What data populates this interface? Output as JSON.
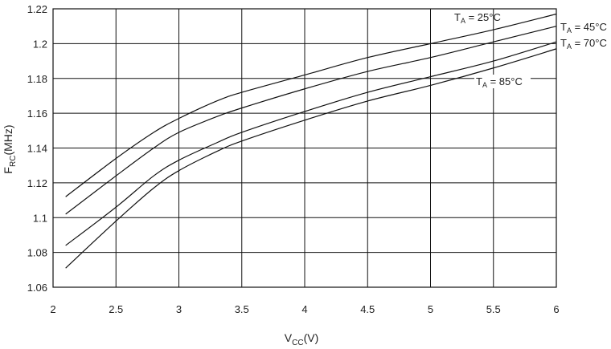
{
  "chart_data": {
    "type": "line",
    "xlabel": {
      "main": "V",
      "sub": "CC",
      "suffix": "(V)"
    },
    "ylabel": {
      "main": "F",
      "sub": "RC",
      "suffix": "(MHz)"
    },
    "xlim": [
      2,
      6
    ],
    "ylim": [
      1.06,
      1.22
    ],
    "grid": true,
    "xticks": [
      {
        "value": 2,
        "label": "2"
      },
      {
        "value": 2.5,
        "label": "2.5"
      },
      {
        "value": 3,
        "label": "3"
      },
      {
        "value": 3.5,
        "label": "3.5"
      },
      {
        "value": 4,
        "label": "4"
      },
      {
        "value": 4.5,
        "label": "4.5"
      },
      {
        "value": 5,
        "label": "5"
      },
      {
        "value": 5.5,
        "label": "5.5"
      },
      {
        "value": 6,
        "label": "6"
      }
    ],
    "yticks": [
      {
        "value": 1.06,
        "label": "1.06"
      },
      {
        "value": 1.08,
        "label": "1.08"
      },
      {
        "value": 1.1,
        "label": "1.1"
      },
      {
        "value": 1.12,
        "label": "1.12"
      },
      {
        "value": 1.14,
        "label": "1.14"
      },
      {
        "value": 1.16,
        "label": "1.16"
      },
      {
        "value": 1.18,
        "label": "1.18"
      },
      {
        "value": 1.2,
        "label": "1.2"
      },
      {
        "value": 1.22,
        "label": "1.22"
      }
    ],
    "series": [
      {
        "name": "T_A = 25°C",
        "label": {
          "main": "T",
          "sub": "A",
          "rest": " = 25°C"
        },
        "x": [
          2.1,
          2.5,
          2.8,
          3.0,
          3.3,
          3.5,
          4.0,
          4.5,
          5.0,
          5.5,
          6.0
        ],
        "y": [
          1.112,
          1.134,
          1.149,
          1.157,
          1.167,
          1.172,
          1.182,
          1.192,
          1.2,
          1.208,
          1.217
        ]
      },
      {
        "name": "T_A = 45°C",
        "label": {
          "main": "T",
          "sub": "A",
          "rest": " = 45°C"
        },
        "x": [
          2.1,
          2.5,
          2.8,
          3.0,
          3.3,
          3.5,
          4.0,
          4.5,
          5.0,
          5.5,
          6.0
        ],
        "y": [
          1.102,
          1.124,
          1.14,
          1.149,
          1.158,
          1.163,
          1.174,
          1.184,
          1.192,
          1.201,
          1.21
        ]
      },
      {
        "name": "T_A = 70°C",
        "label": {
          "main": "T",
          "sub": "A",
          "rest": " = 70°C"
        },
        "x": [
          2.1,
          2.5,
          2.8,
          3.0,
          3.3,
          3.5,
          4.0,
          4.5,
          5.0,
          5.5,
          6.0
        ],
        "y": [
          1.084,
          1.106,
          1.124,
          1.133,
          1.143,
          1.149,
          1.161,
          1.172,
          1.181,
          1.19,
          1.201
        ]
      },
      {
        "name": "T_A = 85°C",
        "label": {
          "main": "T",
          "sub": "A",
          "rest": " = 85°C"
        },
        "x": [
          2.1,
          2.5,
          2.8,
          3.0,
          3.3,
          3.5,
          4.0,
          4.5,
          5.0,
          5.5,
          6.0
        ],
        "y": [
          1.071,
          1.098,
          1.117,
          1.127,
          1.138,
          1.144,
          1.156,
          1.167,
          1.176,
          1.186,
          1.197
        ]
      }
    ]
  }
}
